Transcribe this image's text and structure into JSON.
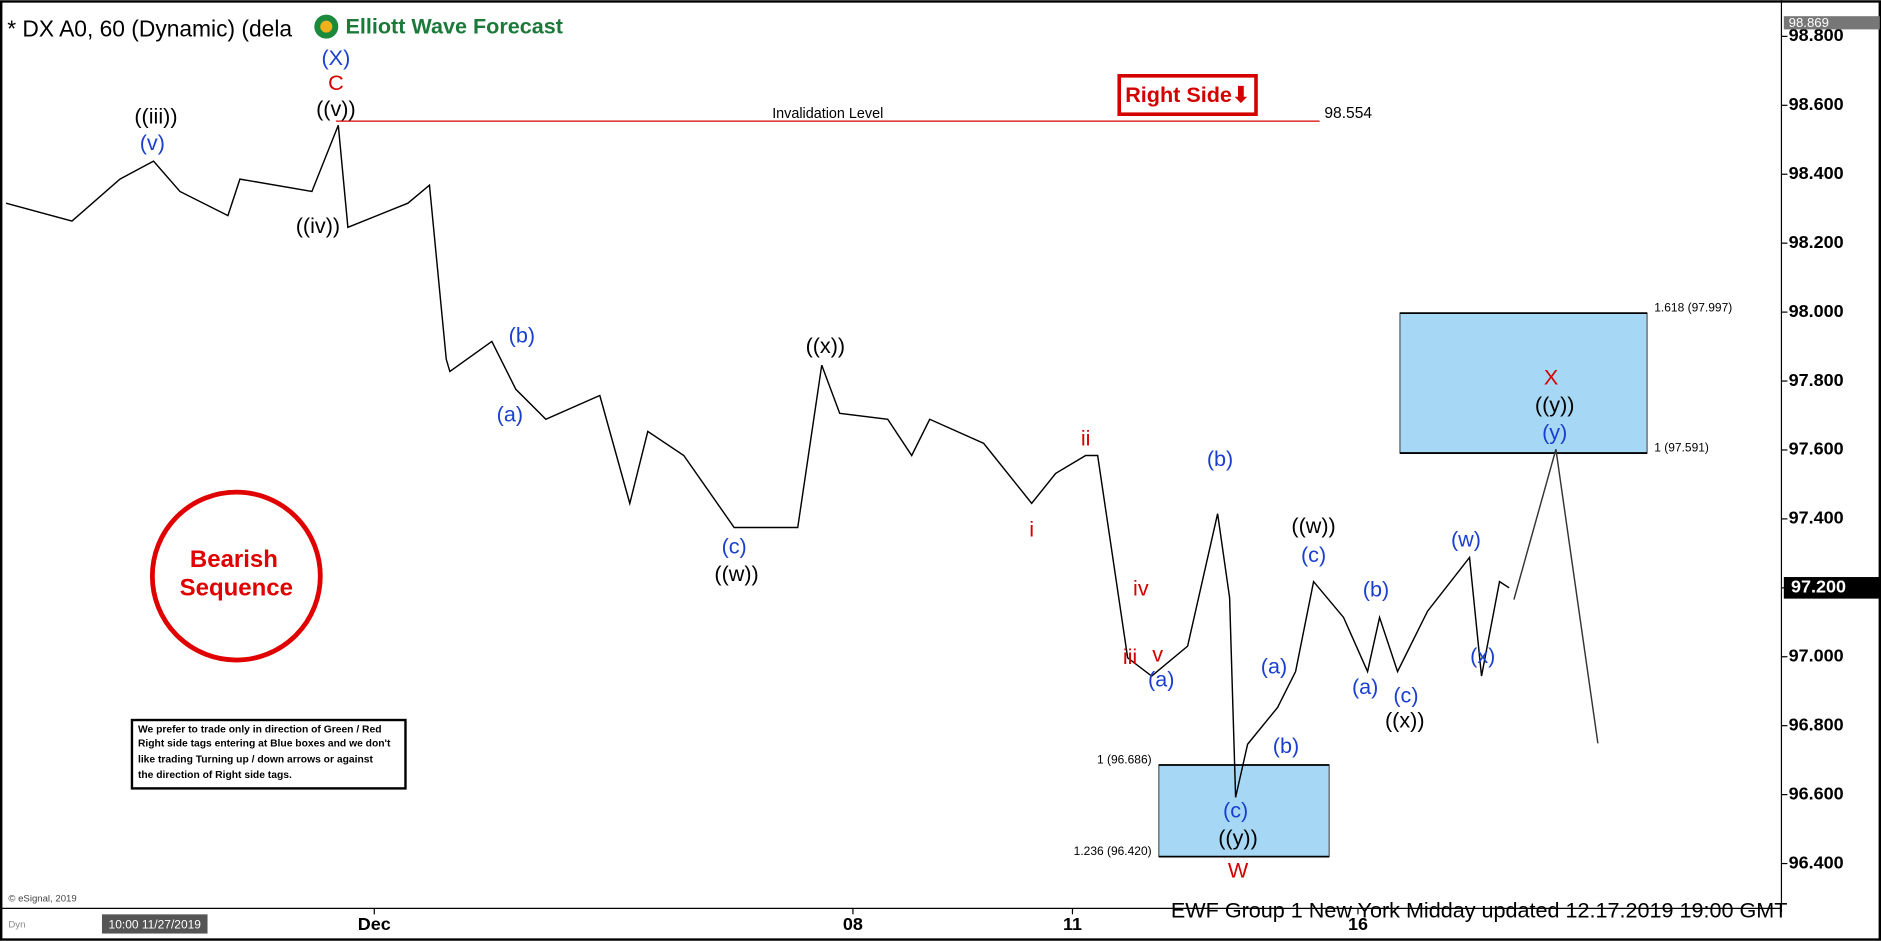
{
  "chart_data": {
    "type": "line",
    "title": "* DX A0, 60 (Dynamic) (dela",
    "logo": "Elliott Wave Forecast",
    "footer": "EWF Group 1 New York Midday  updated 12.17.2019 19:00 GMT",
    "start_label": "10:00 11/27/2019",
    "copyright": "© eSignal, 2019",
    "mode_label": "Dyn",
    "top_price": {
      "value": 98.869,
      "label": "98.869"
    },
    "last_price": {
      "value": 97.2,
      "label": "97.200"
    },
    "right_side_tag": "Right Side⬇",
    "bearish_tag": [
      "Bearish",
      "Sequence"
    ],
    "note": [
      "We prefer to trade only in direction of Green / Red",
      "Right side tags entering at Blue boxes and we don't",
      "like trading Turning up / down arrows or against",
      "the direction of Right side tags."
    ],
    "xlim": [
      0,
      148.5
    ],
    "ylim": [
      96.27,
      98.87
    ],
    "xticks": [
      {
        "value": 31.2,
        "label": "Dec"
      },
      {
        "value": 71.1,
        "label": "08"
      },
      {
        "value": 89.4,
        "label": "11"
      },
      {
        "value": 113.2,
        "label": "16"
      }
    ],
    "yticks": [
      {
        "value": 96.4,
        "label": "96.400"
      },
      {
        "value": 96.6,
        "label": "96.600"
      },
      {
        "value": 96.8,
        "label": "96.800"
      },
      {
        "value": 97.0,
        "label": "97.000"
      },
      {
        "value": 97.2,
        "label": "97.200"
      },
      {
        "value": 97.4,
        "label": "97.400"
      },
      {
        "value": 97.6,
        "label": "97.600"
      },
      {
        "value": 97.8,
        "label": "97.800"
      },
      {
        "value": 98.0,
        "label": "98.000"
      },
      {
        "value": 98.2,
        "label": "98.200"
      },
      {
        "value": 98.4,
        "label": "98.400"
      },
      {
        "value": 98.6,
        "label": "98.600"
      },
      {
        "value": 98.8,
        "label": "98.800"
      }
    ],
    "series": [
      {
        "color": "#000000",
        "x": [
          0.5,
          6.0,
          10.0,
          12.8,
          15.0,
          19.0,
          20.0,
          26.0,
          28.2,
          29.0,
          34.0,
          35.8,
          37.2,
          37.5,
          41.0,
          43.0,
          45.5,
          50.0,
          52.5,
          54.0,
          57.0,
          61.2,
          66.5,
          68.5,
          70.0,
          74.0,
          76.0,
          77.5,
          82.0,
          86.0,
          88.0,
          90.5,
          91.5,
          94.0,
          96.0,
          99.0,
          101.5,
          102.5,
          103.0,
          104.0,
          106.5,
          108.0,
          109.5,
          112.0,
          114.0,
          115.0,
          116.5,
          119.0,
          122.5,
          123.5,
          125.0,
          125.8
        ],
        "values": [
          98.316,
          98.264,
          98.386,
          98.438,
          98.35,
          98.28,
          98.386,
          98.35,
          98.542,
          98.246,
          98.316,
          98.368,
          97.863,
          97.828,
          97.915,
          97.776,
          97.689,
          97.758,
          97.445,
          97.654,
          97.584,
          97.375,
          97.375,
          97.846,
          97.706,
          97.689,
          97.584,
          97.689,
          97.619,
          97.445,
          97.532,
          97.584,
          97.584,
          96.997,
          96.944,
          97.031,
          97.415,
          97.171,
          96.592,
          96.746,
          96.853,
          96.957,
          97.218,
          97.114,
          96.957,
          97.114,
          96.957,
          97.132,
          97.288,
          96.944,
          97.218,
          97.2
        ]
      },
      {
        "color": "#333333",
        "x": [
          126.2,
          129.7,
          133.2
        ],
        "values": [
          97.166,
          97.602,
          96.749
        ]
      }
    ],
    "invalidation": {
      "label": "Invalidation Level",
      "value": 98.554,
      "x": [
        28.0,
        110.0
      ],
      "color": "#d40000"
    },
    "boxes": [
      {
        "x": [
          96.6,
          110.8
        ],
        "values": [
          96.686,
          96.42
        ],
        "labels": [
          "1 (96.686)",
          "1.236 (96.420)"
        ],
        "label_side": "left",
        "color": "#a6d8f5"
      },
      {
        "x": [
          116.7,
          137.3
        ],
        "values": [
          97.997,
          97.591
        ],
        "labels": [
          "1.618 (97.997)",
          "1 (97.591)"
        ],
        "label_side": "right",
        "color": "#a6d8f5"
      }
    ],
    "annotations": [
      {
        "text": "(X)",
        "x": 28.0,
        "y": 98.734,
        "color": "#1a3fd0"
      },
      {
        "text": "C",
        "x": 28.0,
        "y": 98.661,
        "color": "#d40000"
      },
      {
        "text": "((v))",
        "x": 28.0,
        "y": 98.585,
        "color": "#000000"
      },
      {
        "text": "((iii))",
        "x": 13.0,
        "y": 98.564,
        "color": "#000000"
      },
      {
        "text": "(v)",
        "x": 12.7,
        "y": 98.487,
        "color": "#1a3fd0"
      },
      {
        "text": "((iv))",
        "x": 26.5,
        "y": 98.246,
        "color": "#000000"
      },
      {
        "text": "(b)",
        "x": 43.5,
        "y": 97.929,
        "color": "#1a3fd0"
      },
      {
        "text": "(a)",
        "x": 42.5,
        "y": 97.699,
        "color": "#1a3fd0"
      },
      {
        "text": "((x))",
        "x": 68.8,
        "y": 97.898,
        "color": "#000000"
      },
      {
        "text": "(c)",
        "x": 61.2,
        "y": 97.316,
        "color": "#1a3fd0"
      },
      {
        "text": "((w))",
        "x": 61.4,
        "y": 97.236,
        "color": "#000000"
      },
      {
        "text": "ii",
        "x": 90.5,
        "y": 97.63,
        "color": "#d40000"
      },
      {
        "text": "i",
        "x": 86.0,
        "y": 97.365,
        "color": "#d40000"
      },
      {
        "text": "(b)",
        "x": 101.7,
        "y": 97.57,
        "color": "#1a3fd0"
      },
      {
        "text": "((w))",
        "x": 109.5,
        "y": 97.375,
        "color": "#000000"
      },
      {
        "text": "(c)",
        "x": 109.5,
        "y": 97.292,
        "color": "#1a3fd0"
      },
      {
        "text": "iv",
        "x": 95.1,
        "y": 97.194,
        "color": "#d40000"
      },
      {
        "text": "iii",
        "x": 94.2,
        "y": 96.996,
        "color": "#d40000"
      },
      {
        "text": "v",
        "x": 96.5,
        "y": 97.003,
        "color": "#d40000"
      },
      {
        "text": "(a)",
        "x": 96.8,
        "y": 96.93,
        "color": "#1a3fd0"
      },
      {
        "text": "(a)",
        "x": 106.2,
        "y": 96.968,
        "color": "#1a3fd0"
      },
      {
        "text": "(b)",
        "x": 114.7,
        "y": 97.191,
        "color": "#1a3fd0"
      },
      {
        "text": "(a)",
        "x": 113.8,
        "y": 96.909,
        "color": "#1a3fd0"
      },
      {
        "text": "(c)",
        "x": 117.2,
        "y": 96.884,
        "color": "#1a3fd0"
      },
      {
        "text": "((x))",
        "x": 117.1,
        "y": 96.811,
        "color": "#000000"
      },
      {
        "text": "(w)",
        "x": 122.2,
        "y": 97.337,
        "color": "#1a3fd0"
      },
      {
        "text": "(x)",
        "x": 123.6,
        "y": 96.999,
        "color": "#1a3fd0"
      },
      {
        "text": "(b)",
        "x": 107.2,
        "y": 96.738,
        "color": "#1a3fd0"
      },
      {
        "text": "(c)",
        "x": 103.0,
        "y": 96.55,
        "color": "#1a3fd0"
      },
      {
        "text": "((y))",
        "x": 103.2,
        "y": 96.47,
        "color": "#000000"
      },
      {
        "text": "W",
        "x": 103.2,
        "y": 96.376,
        "color": "#d40000"
      },
      {
        "text": "X",
        "x": 129.3,
        "y": 97.807,
        "color": "#d40000"
      },
      {
        "text": "((y))",
        "x": 129.6,
        "y": 97.727,
        "color": "#000000"
      },
      {
        "text": "(y)",
        "x": 129.6,
        "y": 97.647,
        "color": "#1a3fd0"
      }
    ]
  }
}
